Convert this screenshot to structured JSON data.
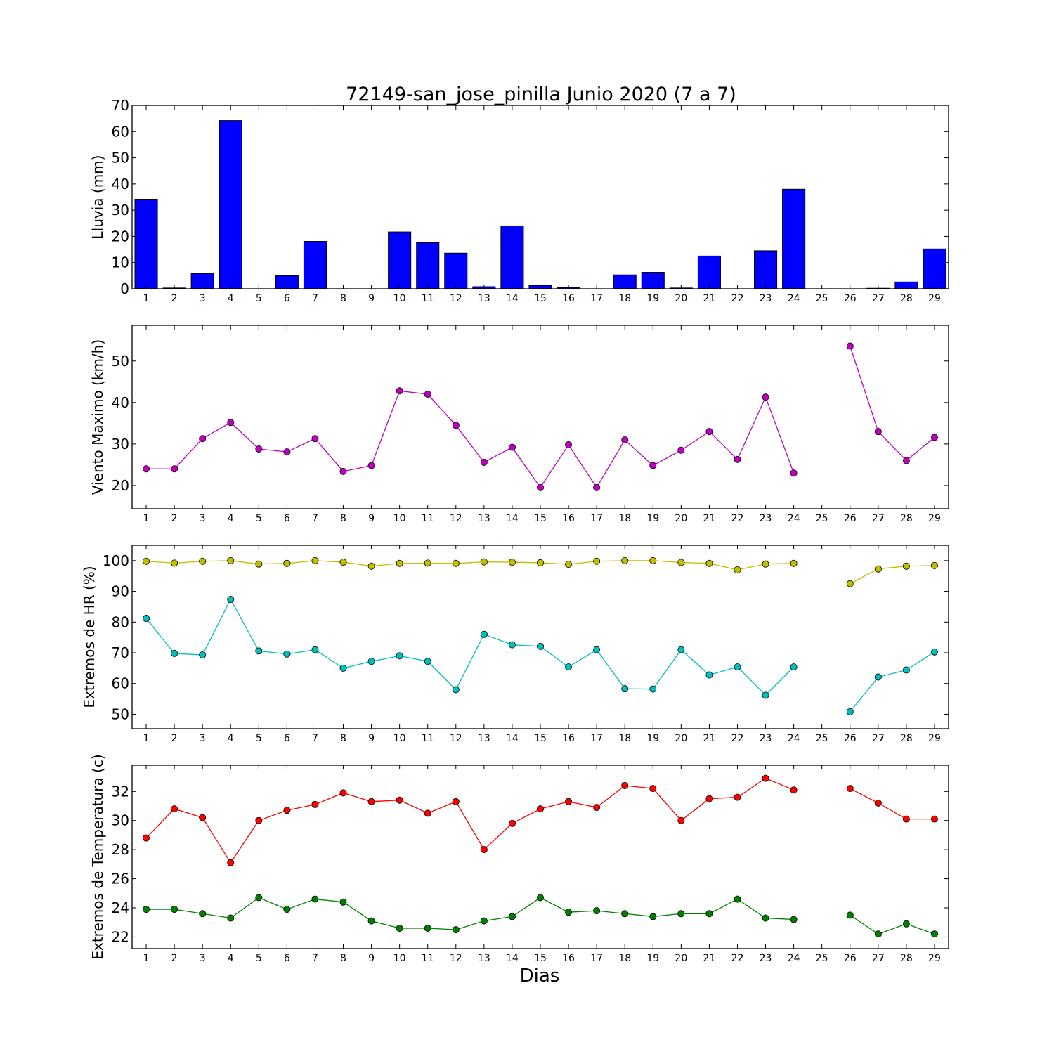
{
  "figure": {
    "title": "72149-san_jose_pinilla Junio 2020  (7 a 7)",
    "xlabel": "Dias"
  },
  "chart_data": [
    {
      "type": "bar",
      "ylabel": "Lluvia (mm)",
      "ylim": [
        0,
        70
      ],
      "yticks": [
        0,
        10,
        20,
        30,
        40,
        50,
        60,
        70
      ],
      "x": [
        1,
        2,
        3,
        4,
        5,
        6,
        7,
        8,
        9,
        10,
        11,
        12,
        13,
        14,
        15,
        16,
        17,
        18,
        19,
        20,
        21,
        22,
        23,
        24,
        25,
        26,
        27,
        28,
        29
      ],
      "series": [
        {
          "color": "#0000ff",
          "values": [
            34.2,
            0.3,
            5.8,
            64.2,
            0,
            5,
            18.1,
            0,
            0,
            21.7,
            17.6,
            13.6,
            0.8,
            24,
            1.3,
            0.5,
            0,
            5.3,
            6.3,
            0.3,
            12.5,
            0,
            14.5,
            38,
            0,
            0,
            0.2,
            2.6,
            15.2
          ]
        }
      ]
    },
    {
      "type": "line",
      "ylabel": "Viento Maximo (km/h)",
      "ylim": [
        14.4,
        58.6
      ],
      "yticks": [
        20,
        30,
        40,
        50
      ],
      "x": [
        1,
        2,
        3,
        4,
        5,
        6,
        7,
        8,
        9,
        10,
        11,
        12,
        13,
        14,
        15,
        16,
        17,
        18,
        19,
        20,
        21,
        22,
        23,
        24,
        25,
        26,
        27,
        28,
        29
      ],
      "series": [
        {
          "color": "#bf00bf",
          "values": [
            24,
            24,
            31.3,
            35.2,
            28.8,
            28.1,
            31.3,
            23.4,
            24.8,
            42.8,
            42,
            34.5,
            25.6,
            29.2,
            19.5,
            29.8,
            19.5,
            31,
            24.8,
            28.5,
            33,
            26.3,
            41.3,
            23,
            null,
            53.6,
            33,
            26,
            31.6
          ]
        }
      ]
    },
    {
      "type": "line",
      "ylabel": "Extremos de HR (%)",
      "ylim": [
        45.3,
        105
      ],
      "yticks": [
        50,
        60,
        70,
        80,
        90,
        100
      ],
      "x": [
        1,
        2,
        3,
        4,
        5,
        6,
        7,
        8,
        9,
        10,
        11,
        12,
        13,
        14,
        15,
        16,
        17,
        18,
        19,
        20,
        21,
        22,
        23,
        24,
        25,
        26,
        27,
        28,
        29
      ],
      "series": [
        {
          "color": "#bfbf00",
          "values": [
            99.8,
            99.2,
            99.8,
            100,
            98.9,
            99.1,
            100,
            99.5,
            98.2,
            99.1,
            99.2,
            99.1,
            99.6,
            99.5,
            99.3,
            98.8,
            99.8,
            100,
            100,
            99.4,
            99.1,
            97,
            98.9,
            99.1,
            null,
            92.5,
            97.3,
            98.2,
            98.4
          ]
        },
        {
          "color": "#00bfbf",
          "values": [
            81.2,
            69.8,
            69.3,
            87.4,
            70.6,
            69.6,
            71,
            65,
            67.2,
            69,
            67.2,
            58,
            76,
            72.6,
            72.1,
            65.4,
            71,
            58.3,
            58.2,
            71,
            62.8,
            65.4,
            56.2,
            65.4,
            null,
            50.8,
            62.1,
            64.4,
            70.3
          ]
        }
      ]
    },
    {
      "type": "line",
      "ylabel": "Extremos de Temperatura (c)",
      "ylim": [
        21.2,
        33.8
      ],
      "yticks": [
        22,
        24,
        26,
        28,
        30,
        32
      ],
      "x": [
        1,
        2,
        3,
        4,
        5,
        6,
        7,
        8,
        9,
        10,
        11,
        12,
        13,
        14,
        15,
        16,
        17,
        18,
        19,
        20,
        21,
        22,
        23,
        24,
        25,
        26,
        27,
        28,
        29
      ],
      "series": [
        {
          "color": "#ff0000",
          "values": [
            28.8,
            30.8,
            30.2,
            27.1,
            30,
            30.7,
            31.1,
            31.9,
            31.3,
            31.4,
            30.5,
            31.3,
            28,
            29.8,
            30.8,
            31.3,
            30.9,
            32.4,
            32.2,
            30,
            31.5,
            31.6,
            32.9,
            32.1,
            null,
            32.2,
            31.2,
            30.1,
            30.1
          ]
        },
        {
          "color": "#008000",
          "values": [
            23.9,
            23.9,
            23.6,
            23.3,
            24.7,
            23.9,
            24.6,
            24.4,
            23.1,
            22.6,
            22.6,
            22.5,
            23.1,
            23.4,
            24.7,
            23.7,
            23.8,
            23.6,
            23.4,
            23.6,
            23.6,
            24.6,
            23.3,
            23.2,
            null,
            23.5,
            22.2,
            22.9,
            22.2
          ]
        }
      ]
    }
  ]
}
